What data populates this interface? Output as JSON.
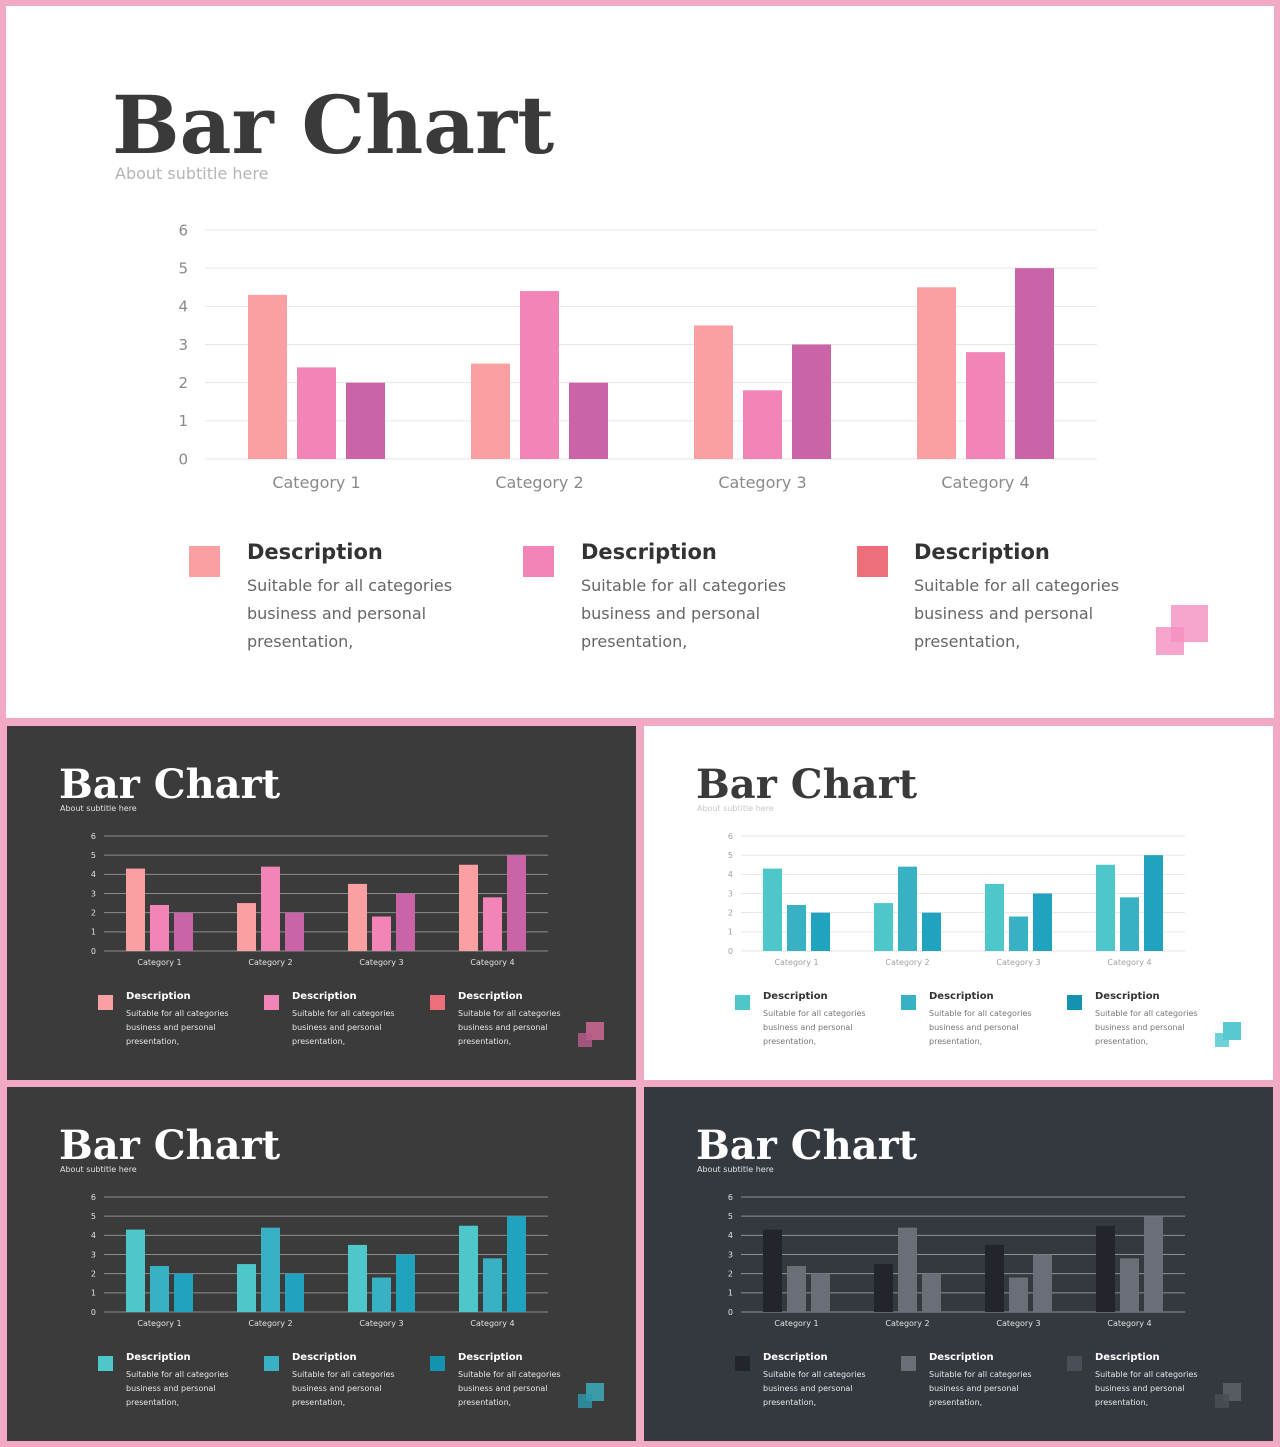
{
  "shared": {
    "title": "Bar Chart",
    "subtitle": "About subtitle here"
  },
  "slides": [
    {
      "theme": "pink-on-white",
      "background": "#ffffff",
      "title": "Bar Chart",
      "subtitle": "About subtitle here",
      "title_color": "#3a3a3a",
      "subtitle_color": "#b5b5b5",
      "axis_color": "#8a8a8a",
      "grid_color": "#e6e6e6",
      "series_colors": [
        "#fba0a2",
        "#f384b7",
        "#c964a6"
      ],
      "descriptions": [
        {
          "heading": "Description",
          "lines": [
            "Suitable for all categories",
            "business and personal",
            "presentation,"
          ],
          "color": "#fba0a2"
        },
        {
          "heading": "Description",
          "lines": [
            "Suitable for all categories",
            "business and personal",
            "presentation,"
          ],
          "color": "#f384b7"
        },
        {
          "heading": "Description",
          "lines": [
            "Suitable for all categories",
            "business and personal",
            "presentation,"
          ],
          "color": "#ec6f7b"
        }
      ],
      "heading_color": "#333333",
      "body_color": "#666666",
      "deco_colors": [
        "#f597c4",
        "#f58fc0"
      ]
    },
    {
      "theme": "pink-on-dark",
      "background": "#3b3b3b",
      "title": "Bar Chart",
      "subtitle": "About subtitle here",
      "title_color": "#ffffff",
      "subtitle_color": "#e0e0e0",
      "axis_color": "#e0e0e0",
      "grid_color": "#8c8c8c",
      "series_colors": [
        "#fba0a2",
        "#f384b7",
        "#c964a6"
      ],
      "descriptions": [
        {
          "heading": "Description",
          "lines": [
            "Suitable for all categories",
            "business and personal",
            "presentation,"
          ],
          "color": "#fba0a2"
        },
        {
          "heading": "Description",
          "lines": [
            "Suitable for all categories",
            "business and personal",
            "presentation,"
          ],
          "color": "#f384b7"
        },
        {
          "heading": "Description",
          "lines": [
            "Suitable for all categories",
            "business and personal",
            "presentation,"
          ],
          "color": "#ec6f7b"
        }
      ],
      "heading_color": "#ffffff",
      "body_color": "#e6e6e6",
      "deco_colors": [
        "#c8668f",
        "#b45a86"
      ]
    },
    {
      "theme": "teal-on-white",
      "background": "#ffffff",
      "title": "Bar Chart",
      "subtitle": "About subtitle here",
      "title_color": "#3a3a3a",
      "subtitle_color": "#c8c8c8",
      "axis_color": "#a0a0a0",
      "grid_color": "#e6e6e6",
      "series_colors": [
        "#4ec7cb",
        "#38b1c4",
        "#1fa3be"
      ],
      "descriptions": [
        {
          "heading": "Description",
          "lines": [
            "Suitable for all categories",
            "business and personal",
            "presentation,"
          ],
          "color": "#4ec7cb"
        },
        {
          "heading": "Description",
          "lines": [
            "Suitable for all categories",
            "business and personal",
            "presentation,"
          ],
          "color": "#38b1c4"
        },
        {
          "heading": "Description",
          "lines": [
            "Suitable for all categories",
            "business and personal",
            "presentation,"
          ],
          "color": "#1493b0"
        }
      ],
      "heading_color": "#333333",
      "body_color": "#777777",
      "deco_colors": [
        "#46c2cc",
        "#55c9cf"
      ]
    },
    {
      "theme": "teal-on-dark",
      "background": "#3b3b3b",
      "title": "Bar Chart",
      "subtitle": "About subtitle here",
      "title_color": "#ffffff",
      "subtitle_color": "#e0e0e0",
      "axis_color": "#e0e0e0",
      "grid_color": "#8c8c8c",
      "series_colors": [
        "#4ec7cb",
        "#38b1c4",
        "#1fa3be"
      ],
      "descriptions": [
        {
          "heading": "Description",
          "lines": [
            "Suitable for all categories",
            "business and personal",
            "presentation,"
          ],
          "color": "#4ec7cb"
        },
        {
          "heading": "Description",
          "lines": [
            "Suitable for all categories",
            "business and personal",
            "presentation,"
          ],
          "color": "#38b1c4"
        },
        {
          "heading": "Description",
          "lines": [
            "Suitable for all categories",
            "business and personal",
            "presentation,"
          ],
          "color": "#1493b0"
        }
      ],
      "heading_color": "#ffffff",
      "body_color": "#e6e6e6",
      "deco_colors": [
        "#3aa7b3",
        "#2d96a8"
      ]
    },
    {
      "theme": "gray-on-slate",
      "background": "#343940",
      "title": "Bar Chart",
      "subtitle": "About subtitle here",
      "title_color": "#ffffff",
      "subtitle_color": "#e0e0e0",
      "axis_color": "#e0e0e0",
      "grid_color": "#8c9097",
      "series_colors": [
        "#22262c",
        "#6a6e76",
        "#6a6e76"
      ],
      "descriptions": [
        {
          "heading": "Description",
          "lines": [
            "Suitable for all categories",
            "business and personal",
            "presentation,"
          ],
          "color": "#22262c"
        },
        {
          "heading": "Description",
          "lines": [
            "Suitable for all categories",
            "business and personal",
            "presentation,"
          ],
          "color": "#6a6e76"
        },
        {
          "heading": "Description",
          "lines": [
            "Suitable for all categories",
            "business and personal",
            "presentation,"
          ],
          "color": "#4a4f57"
        }
      ],
      "heading_color": "#ffffff",
      "body_color": "#e6e6e6",
      "deco_colors": [
        "#5b5f66",
        "#4a4e55"
      ]
    }
  ],
  "chart_data": {
    "type": "bar",
    "categories": [
      "Category 1",
      "Category 2",
      "Category 3",
      "Category 4"
    ],
    "series": [
      {
        "values": [
          4.3,
          2.5,
          3.5,
          4.5
        ]
      },
      {
        "values": [
          2.4,
          4.4,
          1.8,
          2.8
        ]
      },
      {
        "values": [
          2.0,
          2.0,
          3.0,
          5.0
        ]
      }
    ],
    "yticks": [
      "0",
      "1",
      "2",
      "3",
      "4",
      "5",
      "6"
    ],
    "ylim": [
      0,
      6
    ],
    "grid": true,
    "legend": "none"
  }
}
